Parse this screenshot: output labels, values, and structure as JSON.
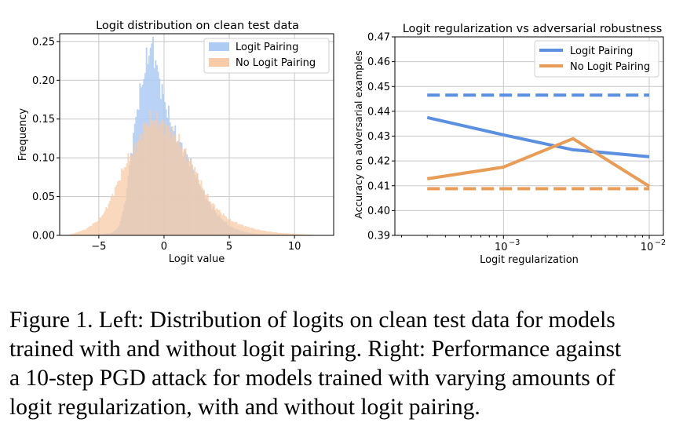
{
  "chart_data": [
    {
      "type": "histogram",
      "title": "Logit distribution on clean test data",
      "xlabel": "Logit value",
      "ylabel": "Frequency",
      "xlim": [
        -8,
        13
      ],
      "ylim": [
        0,
        0.26
      ],
      "xticks": [
        -5,
        0,
        5,
        10
      ],
      "xtick_labels": [
        "−5",
        "0",
        "5",
        "10"
      ],
      "yticks": [
        0,
        0.05,
        0.1,
        0.15,
        0.2,
        0.25
      ],
      "ytick_labels": [
        "0.00",
        "0.05",
        "0.10",
        "0.15",
        "0.20",
        "0.25"
      ],
      "grid": true,
      "legend_position": "top-right",
      "bin_width": 0.1,
      "series": [
        {
          "name": "Logit Pairing",
          "color": "#aecbf4",
          "x": [
            -6,
            -5,
            -4,
            -3.5,
            -3,
            -2.5,
            -2,
            -1.5,
            -1.2,
            -1,
            -0.8,
            -0.5,
            0,
            0.5,
            1,
            1.5,
            2,
            2.5,
            3,
            3.5,
            4,
            5,
            6,
            7,
            8,
            9,
            10
          ],
          "y": [
            0,
            0.001,
            0.003,
            0.01,
            0.04,
            0.11,
            0.17,
            0.21,
            0.235,
            0.245,
            0.24,
            0.21,
            0.175,
            0.145,
            0.125,
            0.11,
            0.095,
            0.075,
            0.055,
            0.04,
            0.028,
            0.012,
            0.005,
            0.002,
            0.001,
            0.0005,
            0
          ]
        },
        {
          "name": "No Logit Pairing",
          "color": "#f7cba7",
          "x": [
            -7.5,
            -7,
            -6,
            -5,
            -4.5,
            -4,
            -3.5,
            -3,
            -2.5,
            -2,
            -1.5,
            -1,
            -0.5,
            0,
            0.5,
            1,
            1.5,
            2,
            2.5,
            3,
            3.5,
            4,
            5,
            6,
            7,
            8,
            9,
            10,
            11,
            12
          ],
          "y": [
            0,
            0.002,
            0.008,
            0.02,
            0.032,
            0.05,
            0.07,
            0.09,
            0.105,
            0.12,
            0.14,
            0.15,
            0.148,
            0.142,
            0.135,
            0.125,
            0.11,
            0.095,
            0.08,
            0.06,
            0.045,
            0.035,
            0.02,
            0.013,
            0.008,
            0.005,
            0.003,
            0.002,
            0.001,
            0
          ]
        }
      ]
    },
    {
      "type": "line",
      "title": "Logit regularization vs adversarial robustness",
      "xlabel": "Logit regularization",
      "ylabel": "Accuracy on adversarial examples",
      "xscale": "log",
      "xlim": [
        0.00018,
        0.0125
      ],
      "ylim": [
        0.39,
        0.47
      ],
      "xticks": [
        0.001,
        0.01
      ],
      "yticks": [
        0.39,
        0.4,
        0.41,
        0.42,
        0.43,
        0.44,
        0.45,
        0.46,
        0.47
      ],
      "ytick_labels": [
        "0.39",
        "0.40",
        "0.41",
        "0.42",
        "0.43",
        "0.44",
        "0.45",
        "0.46",
        "0.47"
      ],
      "grid": true,
      "legend_position": "top-right",
      "series": [
        {
          "name": "Logit Pairing",
          "color": "#5b8fe0",
          "style": "solid",
          "x": [
            0.0003,
            0.001,
            0.003,
            0.01
          ],
          "y": [
            0.4375,
            0.4305,
            0.4245,
            0.4217
          ]
        },
        {
          "name": "No Logit Pairing",
          "color": "#e89c55",
          "style": "solid",
          "x": [
            0.0003,
            0.001,
            0.003,
            0.01
          ],
          "y": [
            0.4128,
            0.4175,
            0.429,
            0.4098
          ]
        },
        {
          "name": "",
          "color": "#5b8fe0",
          "style": "dashed",
          "x": [
            0.0003,
            0.01
          ],
          "y": [
            0.4465,
            0.4465
          ]
        },
        {
          "name": "",
          "color": "#e89c55",
          "style": "dashed",
          "x": [
            0.0003,
            0.01
          ],
          "y": [
            0.4088,
            0.4088
          ]
        }
      ]
    }
  ],
  "caption": {
    "lines": [
      "Figure 1.  Left: Distribution of logits on clean test data for models",
      "trained with and without logit pairing. Right: Performance against",
      "a 10-step PGD attack for models trained with varying amounts of",
      "logit regularization, with and without logit pairing."
    ]
  }
}
